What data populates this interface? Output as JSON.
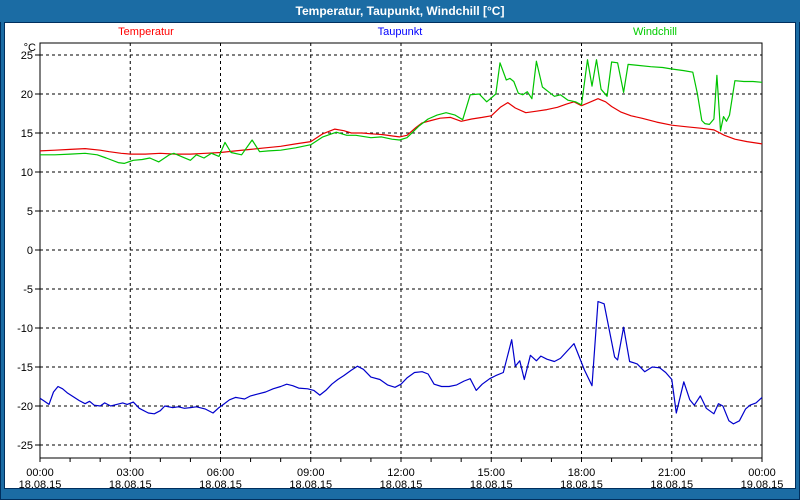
{
  "window": {
    "title": "Temperatur, Taupunkt, Windchill [°C]"
  },
  "colors": {
    "titlebar_bg": "#1B6CA4",
    "frame_border": "#002F5E",
    "plot_frame": "#000000",
    "grid": "#000000",
    "background": "#FFFFFF",
    "temperatur": "#E60000",
    "taupunkt": "#0000CC",
    "windchill": "#00C400",
    "legend_temperatur": "#FF0000",
    "legend_taupunkt": "#0000FF",
    "legend_windchill": "#00CC00"
  },
  "legend": {
    "temperatur": "Temperatur",
    "taupunkt": "Taupunkt",
    "windchill": "Windchill"
  },
  "chart_data": {
    "type": "line",
    "title": "Temperatur, Taupunkt, Windchill [°C]",
    "ylabel": "°C",
    "ylim": [
      -25,
      25
    ],
    "ytick_step": 5,
    "yticks": [
      25,
      20,
      15,
      10,
      5,
      0,
      -5,
      -10,
      -15,
      -20,
      -25
    ],
    "xlim": [
      0,
      24
    ],
    "grid": true,
    "legend_position": "top",
    "minor_xtick_every_hours": 1,
    "xticks": [
      {
        "hour": 0,
        "time": "00:00",
        "date": "18.08.15"
      },
      {
        "hour": 3,
        "time": "03:00",
        "date": "18.08.15"
      },
      {
        "hour": 6,
        "time": "06:00",
        "date": "18.08.15"
      },
      {
        "hour": 9,
        "time": "09:00",
        "date": "18.08.15"
      },
      {
        "hour": 12,
        "time": "12:00",
        "date": "18.08.15"
      },
      {
        "hour": 15,
        "time": "15:00",
        "date": "18.08.15"
      },
      {
        "hour": 18,
        "time": "18:00",
        "date": "18.08.15"
      },
      {
        "hour": 21,
        "time": "21:00",
        "date": "18.08.15"
      },
      {
        "hour": 24,
        "time": "00:00",
        "date": "19.08.15"
      }
    ],
    "series": [
      {
        "name": "Temperatur",
        "color": "#E60000",
        "points": [
          [
            0,
            12.7
          ],
          [
            0.5,
            12.8
          ],
          [
            1,
            12.9
          ],
          [
            1.5,
            13.0
          ],
          [
            2,
            12.8
          ],
          [
            2.3,
            12.6
          ],
          [
            2.7,
            12.4
          ],
          [
            3,
            12.3
          ],
          [
            3.5,
            12.3
          ],
          [
            4,
            12.4
          ],
          [
            4.5,
            12.3
          ],
          [
            5,
            12.3
          ],
          [
            5.5,
            12.4
          ],
          [
            6,
            12.5
          ],
          [
            6.5,
            12.7
          ],
          [
            7,
            12.9
          ],
          [
            7.5,
            13.1
          ],
          [
            8,
            13.3
          ],
          [
            8.5,
            13.6
          ],
          [
            9,
            13.9
          ],
          [
            9.4,
            14.9
          ],
          [
            9.8,
            15.5
          ],
          [
            10.1,
            15.3
          ],
          [
            10.35,
            15.0
          ],
          [
            10.7,
            15.0
          ],
          [
            11,
            14.9
          ],
          [
            11.4,
            14.8
          ],
          [
            11.75,
            14.6
          ],
          [
            11.95,
            14.5
          ],
          [
            12.2,
            14.7
          ],
          [
            12.5,
            15.7
          ],
          [
            12.7,
            16.3
          ],
          [
            13,
            16.6
          ],
          [
            13.3,
            16.9
          ],
          [
            13.65,
            17.0
          ],
          [
            14,
            16.5
          ],
          [
            14.35,
            16.8
          ],
          [
            14.7,
            17.0
          ],
          [
            15,
            17.2
          ],
          [
            15.3,
            18.3
          ],
          [
            15.55,
            18.9
          ],
          [
            15.8,
            18.2
          ],
          [
            16.15,
            17.6
          ],
          [
            16.5,
            17.8
          ],
          [
            16.85,
            18.0
          ],
          [
            17.2,
            18.3
          ],
          [
            17.5,
            18.7
          ],
          [
            17.75,
            19.0
          ],
          [
            18,
            18.5
          ],
          [
            18.25,
            18.9
          ],
          [
            18.55,
            19.4
          ],
          [
            18.8,
            19.0
          ],
          [
            19,
            18.4
          ],
          [
            19.3,
            17.7
          ],
          [
            19.65,
            17.2
          ],
          [
            20,
            16.9
          ],
          [
            20.5,
            16.4
          ],
          [
            21,
            16.0
          ],
          [
            21.5,
            15.8
          ],
          [
            22,
            15.6
          ],
          [
            22.4,
            15.4
          ],
          [
            22.75,
            14.7
          ],
          [
            23.1,
            14.2
          ],
          [
            23.5,
            13.9
          ],
          [
            24,
            13.6
          ]
        ]
      },
      {
        "name": "Taupunkt",
        "color": "#0000CC",
        "points": [
          [
            0,
            -19.0
          ],
          [
            0.15,
            -19.4
          ],
          [
            0.3,
            -19.8
          ],
          [
            0.45,
            -18.2
          ],
          [
            0.6,
            -17.5
          ],
          [
            0.75,
            -17.8
          ],
          [
            0.9,
            -18.3
          ],
          [
            1.1,
            -18.8
          ],
          [
            1.3,
            -19.3
          ],
          [
            1.5,
            -19.7
          ],
          [
            1.65,
            -19.4
          ],
          [
            1.8,
            -19.9
          ],
          [
            2,
            -20.0
          ],
          [
            2.15,
            -19.6
          ],
          [
            2.35,
            -20.0
          ],
          [
            2.55,
            -19.8
          ],
          [
            2.75,
            -19.6
          ],
          [
            2.9,
            -19.8
          ],
          [
            3.1,
            -19.5
          ],
          [
            3.3,
            -20.3
          ],
          [
            3.6,
            -20.9
          ],
          [
            3.8,
            -21.0
          ],
          [
            4,
            -20.6
          ],
          [
            4.15,
            -20.0
          ],
          [
            4.4,
            -20.2
          ],
          [
            4.6,
            -20.1
          ],
          [
            4.8,
            -20.3
          ],
          [
            5,
            -20.2
          ],
          [
            5.2,
            -20.1
          ],
          [
            5.5,
            -20.4
          ],
          [
            5.75,
            -20.9
          ],
          [
            5.95,
            -20.2
          ],
          [
            6.1,
            -19.8
          ],
          [
            6.3,
            -19.2
          ],
          [
            6.5,
            -18.9
          ],
          [
            6.65,
            -19.0
          ],
          [
            6.8,
            -19.1
          ],
          [
            7,
            -18.7
          ],
          [
            7.2,
            -18.5
          ],
          [
            7.5,
            -18.2
          ],
          [
            7.75,
            -17.8
          ],
          [
            8,
            -17.5
          ],
          [
            8.2,
            -17.2
          ],
          [
            8.4,
            -17.4
          ],
          [
            8.6,
            -17.7
          ],
          [
            8.9,
            -17.8
          ],
          [
            9.1,
            -18.0
          ],
          [
            9.3,
            -18.6
          ],
          [
            9.5,
            -18.0
          ],
          [
            9.7,
            -17.2
          ],
          [
            9.9,
            -16.6
          ],
          [
            10.1,
            -16.1
          ],
          [
            10.35,
            -15.4
          ],
          [
            10.55,
            -14.9
          ],
          [
            10.75,
            -15.3
          ],
          [
            11,
            -16.3
          ],
          [
            11.3,
            -16.6
          ],
          [
            11.55,
            -17.3
          ],
          [
            11.8,
            -17.6
          ],
          [
            12,
            -17.2
          ],
          [
            12.2,
            -16.4
          ],
          [
            12.45,
            -15.7
          ],
          [
            12.7,
            -15.6
          ],
          [
            12.9,
            -15.9
          ],
          [
            13.1,
            -17.2
          ],
          [
            13.35,
            -17.5
          ],
          [
            13.6,
            -17.5
          ],
          [
            13.85,
            -17.3
          ],
          [
            14.1,
            -16.8
          ],
          [
            14.3,
            -16.5
          ],
          [
            14.5,
            -18.0
          ],
          [
            14.7,
            -17.2
          ],
          [
            14.95,
            -16.5
          ],
          [
            15.15,
            -16.1
          ],
          [
            15.4,
            -15.7
          ],
          [
            15.68,
            -11.5
          ],
          [
            15.8,
            -14.9
          ],
          [
            15.95,
            -14.2
          ],
          [
            16.1,
            -16.6
          ],
          [
            16.3,
            -13.5
          ],
          [
            16.5,
            -14.2
          ],
          [
            16.65,
            -13.6
          ],
          [
            16.85,
            -14.0
          ],
          [
            17.1,
            -14.3
          ],
          [
            17.3,
            -13.9
          ],
          [
            17.75,
            -12.0
          ],
          [
            18.1,
            -15.4
          ],
          [
            18.35,
            -17.4
          ],
          [
            18.55,
            -6.6
          ],
          [
            18.75,
            -6.9
          ],
          [
            19.1,
            -13.7
          ],
          [
            19.2,
            -14.1
          ],
          [
            19.4,
            -9.9
          ],
          [
            19.6,
            -14.3
          ],
          [
            19.85,
            -14.6
          ],
          [
            20.1,
            -15.6
          ],
          [
            20.35,
            -15.0
          ],
          [
            20.6,
            -15.1
          ],
          [
            20.8,
            -15.7
          ],
          [
            21,
            -16.6
          ],
          [
            21.15,
            -20.9
          ],
          [
            21.4,
            -16.9
          ],
          [
            21.6,
            -19.2
          ],
          [
            21.75,
            -19.9
          ],
          [
            21.95,
            -18.7
          ],
          [
            22.15,
            -20.3
          ],
          [
            22.4,
            -21.0
          ],
          [
            22.55,
            -19.7
          ],
          [
            22.7,
            -20.0
          ],
          [
            22.9,
            -21.9
          ],
          [
            23.05,
            -22.3
          ],
          [
            23.25,
            -21.9
          ],
          [
            23.45,
            -20.4
          ],
          [
            23.6,
            -19.9
          ],
          [
            23.8,
            -19.6
          ],
          [
            24,
            -18.9
          ]
        ]
      },
      {
        "name": "Windchill",
        "color": "#00C400",
        "points": [
          [
            0,
            12.2
          ],
          [
            0.5,
            12.2
          ],
          [
            1,
            12.3
          ],
          [
            1.5,
            12.4
          ],
          [
            1.9,
            12.2
          ],
          [
            2.2,
            11.8
          ],
          [
            2.6,
            11.2
          ],
          [
            2.8,
            11.1
          ],
          [
            3.1,
            11.5
          ],
          [
            3.4,
            11.6
          ],
          [
            3.65,
            11.8
          ],
          [
            3.95,
            11.3
          ],
          [
            4.3,
            12.2
          ],
          [
            4.45,
            12.4
          ],
          [
            4.75,
            11.9
          ],
          [
            5,
            11.5
          ],
          [
            5.2,
            12.2
          ],
          [
            5.45,
            11.8
          ],
          [
            5.7,
            12.4
          ],
          [
            5.95,
            12.0
          ],
          [
            6.15,
            13.8
          ],
          [
            6.35,
            12.5
          ],
          [
            6.7,
            12.2
          ],
          [
            7.05,
            14.1
          ],
          [
            7.3,
            12.6
          ],
          [
            7.6,
            12.7
          ],
          [
            8,
            12.8
          ],
          [
            8.5,
            13.1
          ],
          [
            9,
            13.5
          ],
          [
            9.4,
            14.5
          ],
          [
            9.85,
            15.1
          ],
          [
            10.2,
            14.7
          ],
          [
            10.5,
            14.7
          ],
          [
            11,
            14.4
          ],
          [
            11.35,
            14.5
          ],
          [
            11.7,
            14.2
          ],
          [
            11.95,
            14.1
          ],
          [
            12.2,
            14.4
          ],
          [
            12.6,
            15.9
          ],
          [
            12.9,
            16.8
          ],
          [
            13.2,
            17.3
          ],
          [
            13.5,
            17.6
          ],
          [
            13.8,
            17.3
          ],
          [
            14.05,
            16.7
          ],
          [
            14.3,
            19.9
          ],
          [
            14.6,
            20.0
          ],
          [
            14.85,
            19.0
          ],
          [
            15,
            19.5
          ],
          [
            15.15,
            20.0
          ],
          [
            15.29,
            24.0
          ],
          [
            15.5,
            21.8
          ],
          [
            15.62,
            22.0
          ],
          [
            15.75,
            21.6
          ],
          [
            15.9,
            20.1
          ],
          [
            16.05,
            19.9
          ],
          [
            16.2,
            20.3
          ],
          [
            16.35,
            19.4
          ],
          [
            16.5,
            24.2
          ],
          [
            16.7,
            20.9
          ],
          [
            16.9,
            20.3
          ],
          [
            17.1,
            19.7
          ],
          [
            17.3,
            19.9
          ],
          [
            17.55,
            19.2
          ],
          [
            17.8,
            19.0
          ],
          [
            18,
            18.6
          ],
          [
            18.2,
            24.4
          ],
          [
            18.35,
            21.0
          ],
          [
            18.5,
            24.4
          ],
          [
            18.65,
            20.6
          ],
          [
            18.85,
            19.7
          ],
          [
            19,
            24.1
          ],
          [
            19.2,
            24.0
          ],
          [
            19.4,
            20.2
          ],
          [
            19.55,
            23.8
          ],
          [
            19.8,
            23.7
          ],
          [
            20.3,
            23.5
          ],
          [
            20.7,
            23.4
          ],
          [
            21,
            23.2
          ],
          [
            21.4,
            23.0
          ],
          [
            21.7,
            22.8
          ],
          [
            21.85,
            20.1
          ],
          [
            22,
            16.6
          ],
          [
            22.1,
            16.2
          ],
          [
            22.25,
            16.1
          ],
          [
            22.4,
            16.8
          ],
          [
            22.5,
            22.4
          ],
          [
            22.62,
            15.3
          ],
          [
            22.72,
            17.1
          ],
          [
            22.82,
            16.5
          ],
          [
            22.92,
            17.3
          ],
          [
            23.1,
            21.7
          ],
          [
            23.4,
            21.6
          ],
          [
            23.7,
            21.6
          ],
          [
            24,
            21.5
          ]
        ]
      }
    ]
  }
}
